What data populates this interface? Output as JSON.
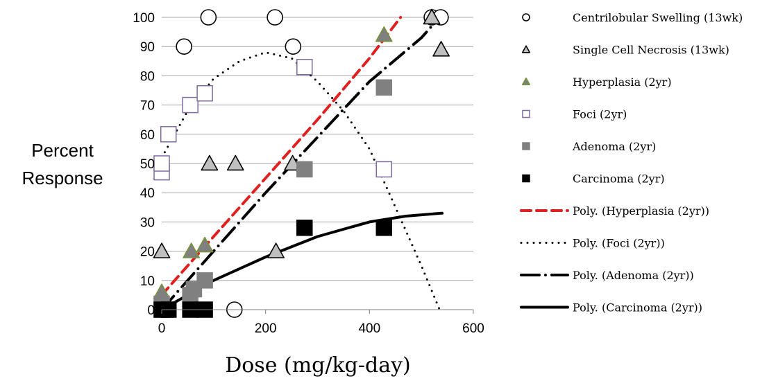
{
  "chart_data": {
    "type": "scatter",
    "xlabel": "Dose (mg/kg-day)",
    "ylabel": [
      "Percent",
      "Response"
    ],
    "xlim": [
      0,
      600
    ],
    "ylim": [
      0,
      100
    ],
    "xticks": [
      0,
      200,
      400,
      600
    ],
    "yticks": [
      0,
      10,
      20,
      30,
      40,
      50,
      60,
      70,
      80,
      90,
      100
    ],
    "grid": "horizontal",
    "legend_position": "right",
    "series": [
      {
        "name": "Centrilobular Swelling (13wk)",
        "marker": "circle",
        "fill": "#ffffff",
        "stroke": "#000000",
        "points": [
          [
            43,
            90
          ],
          [
            90,
            100
          ],
          [
            218,
            100
          ],
          [
            253,
            90
          ],
          [
            140,
            0
          ],
          [
            520,
            100
          ],
          [
            537,
            100
          ]
        ]
      },
      {
        "name": "Single Cell Necrosis (13wk)",
        "marker": "triangle",
        "fill": "#bfbfbf",
        "stroke": "#000000",
        "points": [
          [
            0,
            20
          ],
          [
            92,
            50
          ],
          [
            142,
            50
          ],
          [
            252,
            50
          ],
          [
            220,
            20
          ],
          [
            520,
            100
          ],
          [
            538,
            89
          ]
        ]
      },
      {
        "name": "Hyperplasia (2yr)",
        "marker": "triangle",
        "fill": "#808080",
        "stroke": "#76923c",
        "points": [
          [
            0,
            6
          ],
          [
            57,
            20
          ],
          [
            83,
            22
          ],
          [
            428,
            94
          ]
        ]
      },
      {
        "name": "Foci (2yr)",
        "marker": "square",
        "fill": "#ffffff",
        "stroke": "#7f6a9f",
        "points": [
          [
            0,
            47
          ],
          [
            0,
            50
          ],
          [
            13,
            60
          ],
          [
            55,
            70
          ],
          [
            83,
            74
          ],
          [
            275,
            83
          ],
          [
            428,
            48
          ]
        ]
      },
      {
        "name": "Adenoma (2yr)",
        "marker": "square",
        "fill": "#808080",
        "stroke": "#808080",
        "points": [
          [
            0,
            0
          ],
          [
            0,
            2
          ],
          [
            13,
            0
          ],
          [
            55,
            5
          ],
          [
            62,
            7
          ],
          [
            83,
            10
          ],
          [
            275,
            48
          ],
          [
            428,
            76
          ]
        ]
      },
      {
        "name": "Carcinoma (2yr)",
        "marker": "square",
        "fill": "#000000",
        "stroke": "#000000",
        "points": [
          [
            0,
            0
          ],
          [
            13,
            0
          ],
          [
            55,
            0
          ],
          [
            83,
            0
          ],
          [
            275,
            28
          ],
          [
            428,
            28
          ]
        ]
      }
    ],
    "trendlines": [
      {
        "name": "Poly. (Hyperplasia (2yr))",
        "color": "#e02020",
        "style": "dashed",
        "points": [
          [
            0,
            5
          ],
          [
            100,
            25
          ],
          [
            200,
            45
          ],
          [
            300,
            65
          ],
          [
            400,
            86
          ],
          [
            460,
            100
          ]
        ]
      },
      {
        "name": "Poly. (Foci (2yr))",
        "color": "#000000",
        "style": "dotted",
        "points": [
          [
            0,
            52
          ],
          [
            50,
            68
          ],
          [
            100,
            79
          ],
          [
            150,
            85
          ],
          [
            200,
            88
          ],
          [
            250,
            86
          ],
          [
            300,
            78
          ],
          [
            350,
            68
          ],
          [
            400,
            55
          ],
          [
            450,
            35
          ],
          [
            500,
            15
          ],
          [
            535,
            0
          ]
        ]
      },
      {
        "name": "Poly. (Adenoma (2yr))",
        "color": "#000000",
        "style": "dash-dot",
        "points": [
          [
            0,
            0
          ],
          [
            100,
            20
          ],
          [
            200,
            40
          ],
          [
            300,
            59
          ],
          [
            400,
            78
          ],
          [
            500,
            93
          ],
          [
            535,
            100
          ]
        ]
      },
      {
        "name": "Poly. (Carcinoma (2yr))",
        "color": "#000000",
        "style": "solid",
        "points": [
          [
            0,
            0
          ],
          [
            100,
            10
          ],
          [
            200,
            18
          ],
          [
            300,
            25
          ],
          [
            400,
            30
          ],
          [
            470,
            32
          ],
          [
            540,
            33
          ]
        ]
      }
    ]
  }
}
